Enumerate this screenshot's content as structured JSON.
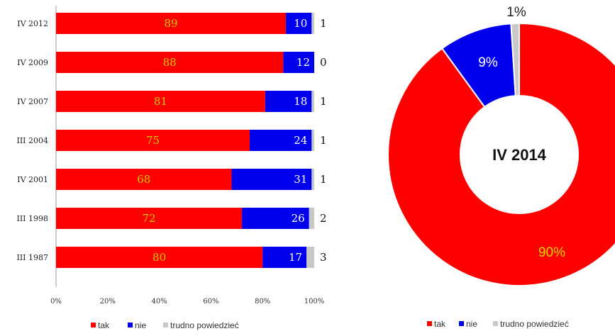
{
  "colors": {
    "tak": "#ff0000",
    "nie": "#0000ee",
    "trudno": "#c8c8c8"
  },
  "chart_data": [
    {
      "type": "bar",
      "stacked": true,
      "orientation": "horizontal",
      "categories": [
        "IV 2012",
        "IV 2009",
        "IV 2007",
        "III 2004",
        "IV 2001",
        "III 1998",
        "III 1987"
      ],
      "series": [
        {
          "name": "tak",
          "values": [
            89,
            88,
            81,
            75,
            68,
            72,
            80
          ]
        },
        {
          "name": "nie",
          "values": [
            10,
            12,
            18,
            24,
            31,
            26,
            17
          ]
        },
        {
          "name": "trudno powiedzieć",
          "values": [
            1,
            0,
            1,
            1,
            1,
            2,
            3
          ]
        }
      ],
      "xticks": [
        "0%",
        "20%",
        "40%",
        "60%",
        "80%",
        "100%"
      ],
      "xlim": [
        0,
        100
      ],
      "legend": [
        "tak",
        "nie",
        "trudno powiedzieć"
      ],
      "legend_position": "bottom",
      "grid": false
    },
    {
      "type": "pie",
      "donut": true,
      "center_label": "IV 2014",
      "slices": [
        {
          "name": "tak",
          "value": 90,
          "label": "90%"
        },
        {
          "name": "nie",
          "value": 9,
          "label": "9%"
        },
        {
          "name": "trudno powiedzieć",
          "value": 1,
          "label": "1%"
        }
      ],
      "legend": [
        "tak",
        "nie",
        "trudno powiedzieć"
      ],
      "legend_position": "bottom"
    }
  ]
}
